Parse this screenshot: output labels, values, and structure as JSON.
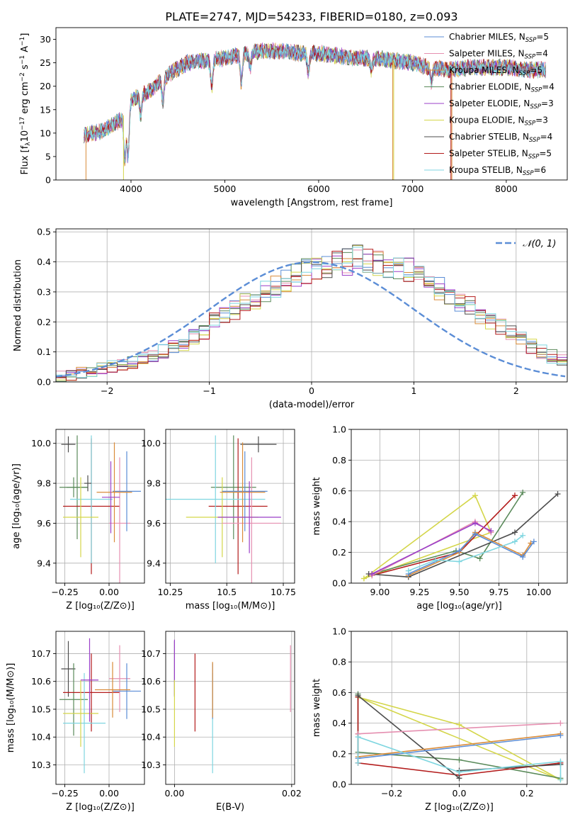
{
  "figure_title": "PLATE=2747, MJD=54233, FIBERID=0180, z=0.093",
  "colors": {
    "Chabrier MILES": "#5b8dd6",
    "Salpeter MILES": "#e58fb0",
    "Kroupa MILES": "#d98c3a",
    "Chabrier ELODIE": "#5a8a5a",
    "Salpeter ELODIE": "#9b3fc8",
    "Kroupa ELODIE": "#d4d64a",
    "Chabrier STELIB": "#4d4d4d",
    "Salpeter STELIB": "#b31b1b",
    "Kroupa STELIB": "#7fd6e0",
    "normal": "#5b8dd6"
  },
  "legend": {
    "models": [
      {
        "key": "Chabrier MILES",
        "text": "Chabrier MILES, N",
        "sub": "SSP",
        "eq": "=5"
      },
      {
        "key": "Salpeter MILES",
        "text": "Salpeter MILES, N",
        "sub": "SSP",
        "eq": "=4"
      },
      {
        "key": "Kroupa MILES",
        "text": "Kroupa MILES, N",
        "sub": "SSP",
        "eq": "=5"
      },
      {
        "key": "Chabrier ELODIE",
        "text": "Chabrier ELODIE, N",
        "sub": "SSP",
        "eq": "=4"
      },
      {
        "key": "Salpeter ELODIE",
        "text": "Salpeter ELODIE, N",
        "sub": "SSP",
        "eq": "=3"
      },
      {
        "key": "Kroupa ELODIE",
        "text": "Kroupa ELODIE, N",
        "sub": "SSP",
        "eq": "=3"
      },
      {
        "key": "Chabrier STELIB",
        "text": "Chabrier STELIB, N",
        "sub": "SSP",
        "eq": "=4"
      },
      {
        "key": "Salpeter STELIB",
        "text": "Salpeter STELIB, N",
        "sub": "SSP",
        "eq": "=5"
      },
      {
        "key": "Kroupa STELIB",
        "text": "Kroupa STELIB, N",
        "sub": "SSP",
        "eq": "=6"
      }
    ],
    "normal": "𝒩(0, 1)"
  },
  "chart_data": [
    {
      "id": "spectrum",
      "type": "line",
      "xlabel": "wavelength [Angstrom, rest frame]",
      "ylabel_parts": {
        "pre": "Flux [f",
        "sub": "λ",
        "mid": "10",
        "sup1": "−17",
        "post": " erg cm",
        "sup2": "−2",
        "post2": " s",
        "sup3": "−1",
        "post3": " A",
        "sup4": "−1",
        "end": "]"
      },
      "xlim": [
        3200,
        8650
      ],
      "ylim": [
        0,
        32.5
      ],
      "xticks": [
        4000,
        5000,
        6000,
        7000,
        8000
      ],
      "yticks": [
        0,
        5,
        10,
        15,
        20,
        25,
        30
      ],
      "continuum": [
        [
          3500,
          9.5
        ],
        [
          3700,
          10.5
        ],
        [
          3900,
          13
        ],
        [
          4000,
          17
        ],
        [
          4200,
          19
        ],
        [
          4400,
          22.5
        ],
        [
          4600,
          25
        ],
        [
          4800,
          25.5
        ],
        [
          5000,
          26
        ],
        [
          5200,
          27
        ],
        [
          5400,
          27.5
        ],
        [
          5600,
          27.5
        ],
        [
          5800,
          27
        ],
        [
          6000,
          27
        ],
        [
          6200,
          26.5
        ],
        [
          6400,
          26
        ],
        [
          6600,
          26
        ],
        [
          6800,
          25.5
        ],
        [
          7000,
          25
        ],
        [
          7200,
          24
        ],
        [
          7400,
          23.5
        ],
        [
          7600,
          24
        ],
        [
          7800,
          24
        ],
        [
          8000,
          24
        ],
        [
          8200,
          23.5
        ],
        [
          8400,
          23.5
        ]
      ],
      "dips": [
        [
          3934,
          4.5
        ],
        [
          3969,
          5
        ],
        [
          4102,
          14
        ],
        [
          4340,
          17
        ],
        [
          4861,
          20
        ],
        [
          5175,
          21
        ],
        [
          5270,
          24
        ],
        [
          5890,
          23
        ],
        [
          6563,
          23.5
        ],
        [
          7200,
          21
        ]
      ],
      "spikes": [
        {
          "model": "Kroupa MILES",
          "x": 3520,
          "y": 0
        },
        {
          "model": "Kroupa ELODIE",
          "x": 3920,
          "y": 0
        },
        {
          "model": "Kroupa MILES",
          "x": 6790,
          "y": 0
        },
        {
          "model": "Kroupa ELODIE",
          "x": 6800,
          "y": 0
        },
        {
          "model": "Salpeter STELIB",
          "x": 7410,
          "y": 0
        },
        {
          "model": "Kroupa MILES",
          "x": 7420,
          "y": 0
        }
      ]
    },
    {
      "id": "residuals",
      "type": "histogram",
      "xlabel": "(data-model)/error",
      "ylabel": "Normed distribution",
      "xlim": [
        -2.5,
        2.5
      ],
      "ylim": [
        0,
        0.51
      ],
      "xticks": [
        -2,
        -1,
        0,
        1,
        2
      ],
      "xtick_labels": [
        "−2",
        "−1",
        "0",
        "1",
        "2"
      ],
      "yticks": [
        0.0,
        0.1,
        0.2,
        0.3,
        0.4,
        0.5
      ],
      "bin_width": 0.1,
      "bin_start": -2.5,
      "base_values": [
        0.02,
        0.02,
        0.03,
        0.035,
        0.045,
        0.05,
        0.06,
        0.065,
        0.075,
        0.085,
        0.1,
        0.115,
        0.13,
        0.15,
        0.17,
        0.2,
        0.22,
        0.24,
        0.26,
        0.28,
        0.3,
        0.32,
        0.34,
        0.36,
        0.37,
        0.38,
        0.39,
        0.4,
        0.4,
        0.41,
        0.4,
        0.4,
        0.39,
        0.38,
        0.37,
        0.35,
        0.33,
        0.31,
        0.29,
        0.27,
        0.25,
        0.22,
        0.2,
        0.18,
        0.16,
        0.14,
        0.12,
        0.1,
        0.085,
        0.07
      ],
      "normal_curve": {
        "mean": 0,
        "sd": 1,
        "label": "𝒩(0, 1)"
      }
    },
    {
      "id": "age_vs_Z",
      "type": "errorbar",
      "xlabel": "Z [log₁₀(Z/Z⊙)]",
      "ylabel": "age  [log₁₀(age/yr)]",
      "xlim": [
        -0.3,
        0.2
      ],
      "ylim": [
        9.3,
        10.07
      ],
      "xticks": [
        -0.25,
        0.0
      ],
      "xtick_labels": [
        "−0.25",
        "0.00"
      ],
      "yticks": [
        9.4,
        9.6,
        9.8,
        10.0
      ],
      "points": [
        {
          "model": "Chabrier STELIB",
          "x": -0.23,
          "xerr": 0.04,
          "y": 9.995,
          "yerr": 0.04
        },
        {
          "model": "Chabrier ELODIE",
          "x": -0.2,
          "xerr": 0.08,
          "y": 9.78,
          "yerr": 0.05
        },
        {
          "model": "Chabrier ELODIE",
          "x": -0.18,
          "xerr": 0.06,
          "y": 9.78,
          "yerr": 0.26
        },
        {
          "model": "Salpeter STELIB",
          "x": -0.1,
          "xerr": 0.16,
          "y": 9.685,
          "yerr": 0.34
        },
        {
          "model": "Kroupa STELIB",
          "x": -0.1,
          "xerr": 0.12,
          "y": 9.72,
          "yerr": 0.32
        },
        {
          "model": "Kroupa ELODIE",
          "x": -0.16,
          "xerr": 0.1,
          "y": 9.63,
          "yerr": 0.2
        },
        {
          "model": "Salpeter MILES",
          "x": 0.06,
          "xerr": 0.06,
          "y": 9.6,
          "yerr": 0.33
        },
        {
          "model": "Chabrier MILES",
          "x": 0.1,
          "xerr": 0.08,
          "y": 9.76,
          "yerr": 0.2
        },
        {
          "model": "Kroupa MILES",
          "x": 0.03,
          "xerr": 0.1,
          "y": 9.755,
          "yerr": 0.25
        },
        {
          "model": "Salpeter ELODIE",
          "x": 0.01,
          "xerr": 0.05,
          "y": 9.73,
          "yerr": 0.18
        },
        {
          "model": "Chabrier STELIB",
          "x": -0.12,
          "xerr": 0.02,
          "y": 9.8,
          "yerr": 0.04
        }
      ]
    },
    {
      "id": "age_vs_mass",
      "type": "errorbar",
      "xlabel": "mass [log₁₀(M/M⊙)]",
      "ylabel": "",
      "xlim": [
        10.23,
        10.8
      ],
      "ylim": [
        9.3,
        10.07
      ],
      "xticks": [
        10.25,
        10.5,
        10.75
      ],
      "yticks": [
        9.4,
        9.6,
        9.8,
        10.0
      ],
      "points": [
        {
          "model": "Chabrier STELIB",
          "x": 10.64,
          "xerr": 0.08,
          "y": 9.995,
          "yerr": 0.04
        },
        {
          "model": "Chabrier ELODIE",
          "x": 10.53,
          "xerr": 0.1,
          "y": 9.78,
          "yerr": 0.26
        },
        {
          "model": "Salpeter STELIB",
          "x": 10.55,
          "xerr": 0.13,
          "y": 9.685,
          "yerr": 0.34
        },
        {
          "model": "Kroupa STELIB",
          "x": 10.45,
          "xerr": 0.22,
          "y": 9.72,
          "yerr": 0.32
        },
        {
          "model": "Kroupa ELODIE",
          "x": 10.48,
          "xerr": 0.16,
          "y": 9.63,
          "yerr": 0.2
        },
        {
          "model": "Salpeter MILES",
          "x": 10.61,
          "xerr": 0.13,
          "y": 9.6,
          "yerr": 0.33
        },
        {
          "model": "Chabrier MILES",
          "x": 10.58,
          "xerr": 0.1,
          "y": 9.76,
          "yerr": 0.2
        },
        {
          "model": "Kroupa MILES",
          "x": 10.57,
          "xerr": 0.1,
          "y": 9.755,
          "yerr": 0.25
        },
        {
          "model": "Salpeter ELODIE",
          "x": 10.6,
          "xerr": 0.14,
          "y": 9.63,
          "yerr": 0.18
        }
      ]
    },
    {
      "id": "weight_vs_age",
      "type": "line",
      "xlabel": "age  [log₁₀(age/yr)]",
      "ylabel": "mass weight",
      "xlim": [
        8.82,
        10.18
      ],
      "ylim": [
        0,
        1.0
      ],
      "xticks": [
        9.0,
        9.25,
        9.5,
        9.75,
        10.0
      ],
      "xtick_labels": [
        "9.00",
        "9.25",
        "9.50",
        "9.75",
        "10.00"
      ],
      "yticks": [
        0.0,
        0.2,
        0.4,
        0.6,
        0.8,
        1.0
      ],
      "series": [
        {
          "model": "Kroupa ELODIE",
          "x": [
            8.9,
            9.6,
            9.7,
            8.9
          ],
          "y": [
            0.03,
            0.57,
            0.33,
            0.03
          ]
        },
        {
          "model": "Chabrier ELODIE",
          "x": [
            8.95,
            9.48,
            9.63,
            9.9
          ],
          "y": [
            0.06,
            0.21,
            0.16,
            0.59
          ]
        },
        {
          "model": "Salpeter STELIB",
          "x": [
            8.95,
            9.5,
            9.85
          ],
          "y": [
            0.05,
            0.2,
            0.57
          ]
        },
        {
          "model": "Chabrier STELIB",
          "x": [
            8.93,
            9.18,
            9.85,
            10.12
          ],
          "y": [
            0.06,
            0.04,
            0.33,
            0.58
          ]
        },
        {
          "model": "Salpeter MILES",
          "x": [
            8.95,
            9.6,
            9.7
          ],
          "y": [
            0.05,
            0.4,
            0.33
          ]
        },
        {
          "model": "Salpeter ELODIE",
          "x": [
            8.95,
            9.6,
            9.7
          ],
          "y": [
            0.06,
            0.39,
            0.34
          ]
        },
        {
          "model": "Kroupa MILES",
          "x": [
            9.18,
            9.5,
            9.6,
            9.9,
            9.95
          ],
          "y": [
            0.05,
            0.2,
            0.33,
            0.18,
            0.26
          ]
        },
        {
          "model": "Chabrier MILES",
          "x": [
            9.18,
            9.5,
            9.6,
            9.9,
            9.97
          ],
          "y": [
            0.06,
            0.21,
            0.32,
            0.17,
            0.27
          ]
        },
        {
          "model": "Kroupa STELIB",
          "x": [
            9.18,
            9.35,
            9.5,
            9.85,
            9.9
          ],
          "y": [
            0.08,
            0.15,
            0.14,
            0.27,
            0.31
          ]
        }
      ]
    },
    {
      "id": "mass_vs_Z",
      "type": "errorbar",
      "xlabel": "Z [log₁₀(Z/Z⊙)]",
      "ylabel": "mass [log₁₀(M/M⊙)]",
      "xlim": [
        -0.3,
        0.2
      ],
      "ylim": [
        10.23,
        10.78
      ],
      "xticks": [
        -0.25,
        0.0
      ],
      "xtick_labels": [
        "−0.25",
        "0.00"
      ],
      "yticks": [
        10.3,
        10.4,
        10.5,
        10.6,
        10.7
      ],
      "points": [
        {
          "model": "Chabrier STELIB",
          "x": -0.23,
          "xerr": 0.04,
          "y": 10.645,
          "yerr": 0.1
        },
        {
          "model": "Chabrier ELODIE",
          "x": -0.2,
          "xerr": 0.08,
          "y": 10.535,
          "yerr": 0.13
        },
        {
          "model": "Salpeter STELIB",
          "x": -0.1,
          "xerr": 0.16,
          "y": 10.56,
          "yerr": 0.14
        },
        {
          "model": "Kroupa STELIB",
          "x": -0.14,
          "xerr": 0.12,
          "y": 10.45,
          "yerr": 0.18
        },
        {
          "model": "Kroupa ELODIE",
          "x": -0.16,
          "xerr": 0.1,
          "y": 10.485,
          "yerr": 0.12
        },
        {
          "model": "Salpeter MILES",
          "x": 0.06,
          "xerr": 0.06,
          "y": 10.61,
          "yerr": 0.12
        },
        {
          "model": "Chabrier MILES",
          "x": 0.1,
          "xerr": 0.08,
          "y": 10.565,
          "yerr": 0.1
        },
        {
          "model": "Kroupa MILES",
          "x": 0.02,
          "xerr": 0.1,
          "y": 10.57,
          "yerr": 0.1
        },
        {
          "model": "Salpeter ELODIE",
          "x": -0.11,
          "xerr": 0.05,
          "y": 10.605,
          "yerr": 0.15
        }
      ]
    },
    {
      "id": "mass_vs_ebv",
      "type": "errorbar",
      "xlabel": "E(B-V)",
      "ylabel": "",
      "xlim": [
        -0.0015,
        0.0205
      ],
      "ylim": [
        10.23,
        10.78
      ],
      "xticks": [
        0.0,
        0.02
      ],
      "xtick_labels": [
        "0.00",
        "0.02"
      ],
      "yticks": [
        10.3,
        10.4,
        10.5,
        10.6,
        10.7
      ],
      "points": [
        {
          "model": "Chabrier STELIB",
          "x": 0.0,
          "xerr": 0,
          "y": 10.645,
          "yerr": 0.1
        },
        {
          "model": "Salpeter ELODIE",
          "x": 0.0,
          "xerr": 0,
          "y": 10.65,
          "yerr": 0.1
        },
        {
          "model": "Kroupa ELODIE",
          "x": 0.0,
          "xerr": 0,
          "y": 10.485,
          "yerr": 0.12
        },
        {
          "model": "Salpeter STELIB",
          "x": 0.0035,
          "xerr": 0,
          "y": 10.56,
          "yerr": 0.14
        },
        {
          "model": "Kroupa STELIB",
          "x": 0.0065,
          "xerr": 0,
          "y": 10.45,
          "yerr": 0.18
        },
        {
          "model": "Chabrier MILES",
          "x": 0.0065,
          "xerr": 0,
          "y": 10.565,
          "yerr": 0.1
        },
        {
          "model": "Kroupa MILES",
          "x": 0.0065,
          "xerr": 0,
          "y": 10.57,
          "yerr": 0.1
        },
        {
          "model": "Salpeter MILES",
          "x": 0.0198,
          "xerr": 0,
          "y": 10.61,
          "yerr": 0.12
        }
      ]
    },
    {
      "id": "weight_vs_Z",
      "type": "line",
      "xlabel": "Z [log₁₀(Z/Z⊙)]",
      "ylabel": "mass weight",
      "xlim": [
        -0.32,
        0.32
      ],
      "ylim": [
        0,
        1.0
      ],
      "xticks": [
        -0.2,
        0.0,
        0.2
      ],
      "xtick_labels": [
        "−0.2",
        "0.0",
        "0.2"
      ],
      "yticks": [
        0.0,
        0.2,
        0.4,
        0.6,
        0.8,
        1.0
      ],
      "series": [
        {
          "model": "Kroupa ELODIE",
          "x": [
            -0.3,
            0.0,
            0.3,
            -0.3
          ],
          "y": [
            0.57,
            0.39,
            0.03,
            0.57
          ]
        },
        {
          "model": "Chabrier ELODIE",
          "x": [
            -0.3,
            -0.3,
            0.0,
            0.3
          ],
          "y": [
            0.59,
            0.21,
            0.16,
            0.04
          ]
        },
        {
          "model": "Salpeter STELIB",
          "x": [
            -0.3,
            -0.3,
            -0.3,
            0.0,
            0.3
          ],
          "y": [
            0.57,
            0.33,
            0.14,
            0.06,
            0.14
          ]
        },
        {
          "model": "Chabrier STELIB",
          "x": [
            -0.3,
            0.0,
            0.0,
            0.3
          ],
          "y": [
            0.58,
            0.04,
            0.09,
            0.13
          ]
        },
        {
          "model": "Salpeter MILES",
          "x": [
            -0.3,
            0.3
          ],
          "y": [
            0.33,
            0.4
          ]
        },
        {
          "model": "Kroupa MILES",
          "x": [
            -0.3,
            0.3
          ],
          "y": [
            0.18,
            0.33
          ]
        },
        {
          "model": "Chabrier MILES",
          "x": [
            -0.3,
            0.3
          ],
          "y": [
            0.17,
            0.32
          ]
        },
        {
          "model": "Kroupa STELIB",
          "x": [
            -0.3,
            -0.3,
            0.0,
            0.3,
            0.3
          ],
          "y": [
            0.14,
            0.31,
            0.08,
            0.15,
            0.03
          ]
        }
      ]
    }
  ]
}
